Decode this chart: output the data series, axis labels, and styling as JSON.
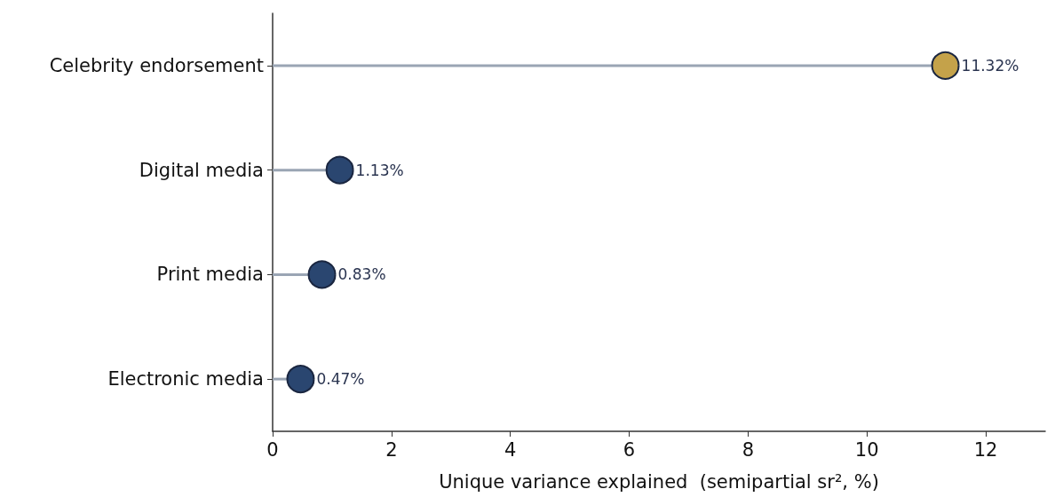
{
  "chart_data": {
    "type": "lollipop",
    "orientation": "horizontal",
    "xlabel": "Unique variance explained  (semipartial sr², %)",
    "categories": [
      "Celebrity endorsement",
      "Digital media",
      "Print media",
      "Electronic media"
    ],
    "values": [
      11.32,
      1.13,
      0.83,
      0.47
    ],
    "colors": [
      "#c4a24a",
      "#2a4670",
      "#2a4670",
      "#2a4670"
    ],
    "value_labels": [
      "11.32%",
      "1.13%",
      "0.83%",
      "0.47%"
    ],
    "xlim": [
      0,
      13
    ],
    "xticks": [
      0,
      2,
      4,
      6,
      8,
      10,
      12
    ],
    "marker": "circle",
    "grid": false
  }
}
